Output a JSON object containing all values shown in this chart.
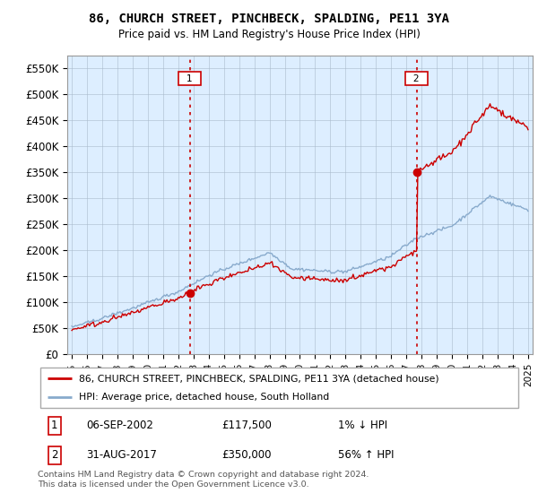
{
  "title": "86, CHURCH STREET, PINCHBECK, SPALDING, PE11 3YA",
  "subtitle": "Price paid vs. HM Land Registry's House Price Index (HPI)",
  "ylabel_ticks": [
    "£0",
    "£50K",
    "£100K",
    "£150K",
    "£200K",
    "£250K",
    "£300K",
    "£350K",
    "£400K",
    "£450K",
    "£500K",
    "£550K"
  ],
  "ytick_values": [
    0,
    50000,
    100000,
    150000,
    200000,
    250000,
    300000,
    350000,
    400000,
    450000,
    500000,
    550000
  ],
  "ylim": [
    0,
    575000
  ],
  "sale1_date": 2002.75,
  "sale1_price": 117500,
  "sale2_date": 2017.67,
  "sale2_price": 350000,
  "red_color": "#cc0000",
  "blue_color": "#88aacc",
  "bg_color": "#ffffff",
  "chart_bg": "#ddeeff",
  "grid_color": "#aabbcc",
  "legend1": "86, CHURCH STREET, PINCHBECK, SPALDING, PE11 3YA (detached house)",
  "legend2": "HPI: Average price, detached house, South Holland",
  "table_row1": [
    "1",
    "06-SEP-2002",
    "£117,500",
    "1% ↓ HPI"
  ],
  "table_row2": [
    "2",
    "31-AUG-2017",
    "£350,000",
    "56% ↑ HPI"
  ],
  "footer": "Contains HM Land Registry data © Crown copyright and database right 2024.\nThis data is licensed under the Open Government Licence v3.0.",
  "xmin": 1995,
  "xmax": 2025
}
